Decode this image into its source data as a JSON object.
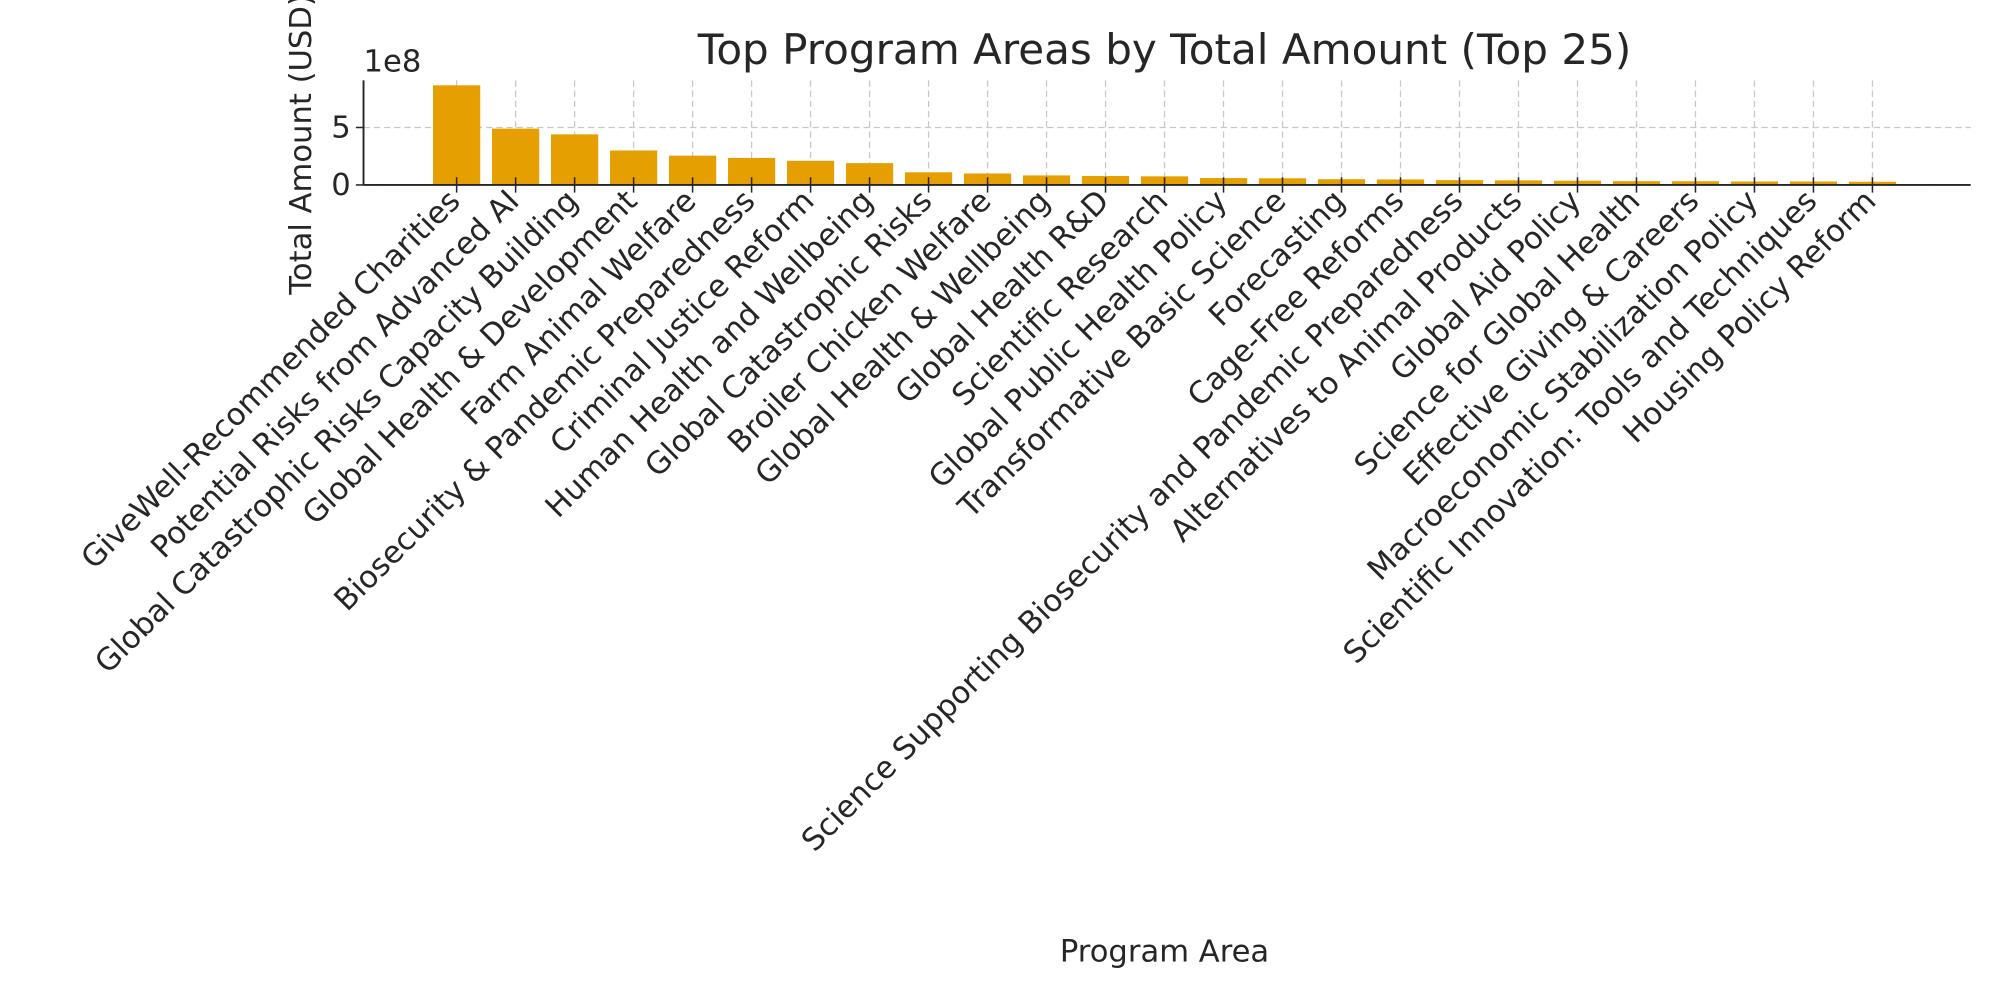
{
  "chart_data": {
    "type": "bar",
    "title": "Top Program Areas by Total Amount (Top 25)",
    "x_label": "Program Area",
    "y_label": "Total Amount (USD)",
    "y_offset_label": "1e8",
    "categories": [
      "GiveWell-Recommended Charities",
      "Potential Risks from Advanced AI",
      "Global Catastrophic Risks Capacity Building",
      "Global Health & Development",
      "Farm Animal Welfare",
      "Biosecurity & Pandemic Preparedness",
      "Criminal Justice Reform",
      "Human Health and Wellbeing",
      "Global Catastrophic Risks",
      "Broiler Chicken Welfare",
      "Global Health & Wellbeing",
      "Global Health R&D",
      "Scientific Research",
      "Global Public Health Policy",
      "Transformative Basic Science",
      "Forecasting",
      "Cage-Free Reforms",
      "Science Supporting Biosecurity and Pandemic Preparedness",
      "Alternatives to Animal Products",
      "Global Aid Policy",
      "Science for Global Health",
      "Effective Giving & Careers",
      "Macroeconomic Stabilization Policy",
      "Scientific Innovation: Tools and Techniques",
      "Housing Policy Reform"
    ],
    "values": [
      8.67,
      4.9,
      4.4,
      3.0,
      2.55,
      2.35,
      2.1,
      1.9,
      1.1,
      1.0,
      0.83,
      0.78,
      0.75,
      0.6,
      0.58,
      0.5,
      0.48,
      0.42,
      0.4,
      0.37,
      0.33,
      0.32,
      0.3,
      0.3,
      0.28
    ],
    "color": "#e69f00",
    "ylim": [
      0,
      9.1
    ],
    "yticks": [
      0,
      5
    ],
    "grid": true
  }
}
